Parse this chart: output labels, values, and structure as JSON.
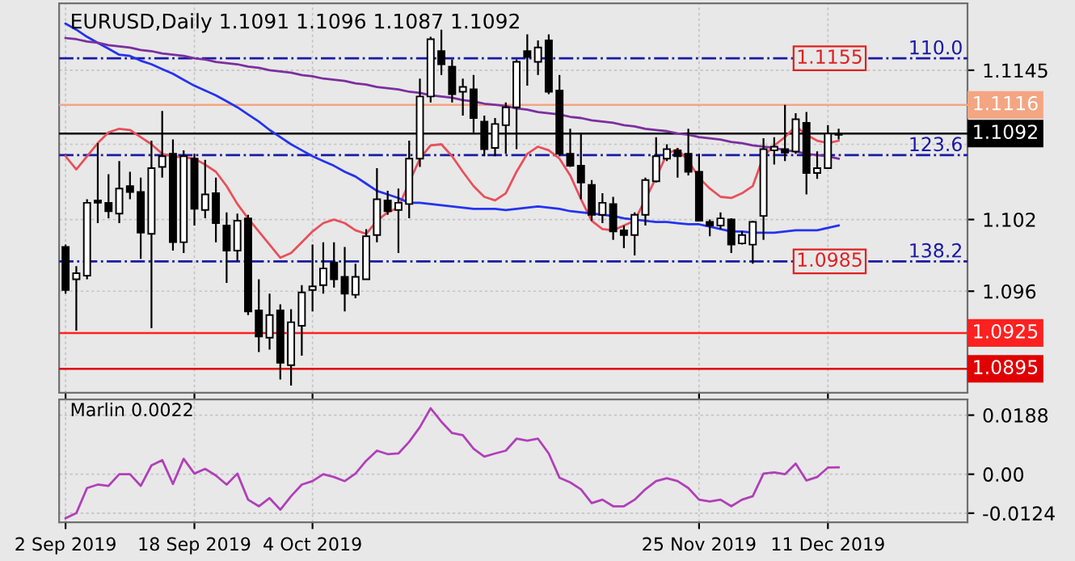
{
  "chart_data": [
    {
      "type": "candlestick",
      "title": "EURUSD,Daily 1.1091 1.1096 1.1087 1.1092",
      "categories": [
        null,
        null,
        null,
        null,
        null,
        null,
        null,
        null,
        null,
        null,
        null,
        null,
        null,
        null,
        null,
        null,
        null,
        null,
        null,
        null,
        null,
        null,
        null,
        null,
        null,
        null,
        null,
        null,
        null,
        null,
        null,
        null,
        null,
        null,
        null,
        null,
        null,
        null,
        null,
        null,
        null,
        null,
        null,
        null,
        null,
        null,
        null,
        null,
        null,
        null,
        null,
        null,
        null,
        null,
        null,
        null,
        null,
        null,
        null,
        null,
        null,
        null,
        null,
        null,
        null,
        null,
        null,
        null,
        null,
        null,
        null,
        null,
        null
      ],
      "ohlc": [
        [
          1.0997,
          1.0999,
          1.0958,
          1.0961
        ],
        [
          1.097,
          1.0981,
          1.0927,
          1.0975
        ],
        [
          1.0973,
          1.1037,
          1.097,
          1.1034
        ],
        [
          1.1036,
          1.1084,
          1.1017,
          1.1034
        ],
        [
          1.1034,
          1.1058,
          1.1021,
          1.1027
        ],
        [
          1.1025,
          1.1069,
          1.1017,
          1.1046
        ],
        [
          1.1048,
          1.106,
          1.1037,
          1.1043
        ],
        [
          1.1043,
          1.1055,
          1.0987,
          1.1009
        ],
        [
          1.1008,
          1.1086,
          1.0929,
          1.1063
        ],
        [
          1.1064,
          1.1111,
          1.1055,
          1.1073
        ],
        [
          1.1075,
          1.1087,
          1.0994,
          1.1001
        ],
        [
          1.1001,
          1.1078,
          1.0992,
          1.1073
        ],
        [
          1.1071,
          1.1075,
          1.1015,
          1.1029
        ],
        [
          1.1028,
          1.107,
          1.1021,
          1.1041
        ],
        [
          1.1042,
          1.1055,
          1.1001,
          1.1017
        ],
        [
          1.1015,
          1.1026,
          1.0967,
          1.0994
        ],
        [
          1.0994,
          1.1025,
          1.0985,
          1.1019
        ],
        [
          1.1021,
          1.1024,
          1.094,
          1.0943
        ],
        [
          1.0944,
          1.097,
          1.0909,
          1.0922
        ],
        [
          1.0921,
          1.0958,
          1.0911,
          1.094
        ],
        [
          1.0944,
          1.0949,
          1.0886,
          1.09
        ],
        [
          1.0898,
          1.0945,
          1.0881,
          1.0934
        ],
        [
          1.0931,
          1.0965,
          1.0906,
          1.0959
        ],
        [
          1.0961,
          1.0999,
          1.0943,
          1.0964
        ],
        [
          1.0965,
          1.1001,
          1.0958,
          1.0979
        ],
        [
          1.0984,
          1.1001,
          1.0963,
          1.097
        ],
        [
          1.0972,
          1.0997,
          1.0943,
          1.0958
        ],
        [
          1.0957,
          1.0983,
          1.0954,
          1.0972
        ],
        [
          1.097,
          1.1012,
          1.097,
          1.1006
        ],
        [
          1.1007,
          1.1063,
          1.1001,
          1.1037
        ],
        [
          1.1036,
          1.1044,
          1.1024,
          1.1027
        ],
        [
          1.1028,
          1.1046,
          1.0992,
          1.1034
        ],
        [
          1.1033,
          1.1086,
          1.1021,
          1.1071
        ],
        [
          1.1071,
          1.1138,
          1.1064,
          1.1123
        ],
        [
          1.1123,
          1.1173,
          1.1118,
          1.1171
        ],
        [
          1.1161,
          1.1179,
          1.1141,
          1.115
        ],
        [
          1.1148,
          1.1154,
          1.1118,
          1.1125
        ],
        [
          1.1127,
          1.1138,
          1.1107,
          1.1131
        ],
        [
          1.1129,
          1.1141,
          1.1093,
          1.1105
        ],
        [
          1.1102,
          1.1107,
          1.1073,
          1.1079
        ],
        [
          1.108,
          1.1105,
          1.1073,
          1.11
        ],
        [
          1.1099,
          1.1118,
          1.1075,
          1.1114
        ],
        [
          1.1114,
          1.1154,
          1.1079,
          1.1152
        ],
        [
          1.1161,
          1.1175,
          1.1132,
          1.1156
        ],
        [
          1.1152,
          1.117,
          1.1141,
          1.1164
        ],
        [
          1.117,
          1.1175,
          1.1125,
          1.1127
        ],
        [
          1.1128,
          1.1141,
          1.1073,
          1.1075
        ],
        [
          1.1075,
          1.1096,
          1.1064,
          1.1065
        ],
        [
          1.1065,
          1.1092,
          1.1037,
          1.1051
        ],
        [
          1.1049,
          1.1053,
          1.1019,
          1.1024
        ],
        [
          1.1024,
          1.1042,
          1.1017,
          1.1034
        ],
        [
          1.1033,
          1.1039,
          1.1003,
          1.101
        ],
        [
          1.1011,
          1.1015,
          1.0996,
          1.1007
        ],
        [
          1.1007,
          1.1026,
          1.099,
          1.1024
        ],
        [
          1.1024,
          1.1055,
          1.1015,
          1.1053
        ],
        [
          1.1052,
          1.1089,
          1.1051,
          1.1073
        ],
        [
          1.1071,
          1.1083,
          1.1069,
          1.1079
        ],
        [
          1.1078,
          1.108,
          1.1055,
          1.1073
        ],
        [
          1.1075,
          1.1096,
          1.1057,
          1.106
        ],
        [
          1.106,
          1.1075,
          1.1019,
          1.1019
        ],
        [
          1.1018,
          1.102,
          1.1006,
          1.1015
        ],
        [
          1.1015,
          1.1026,
          1.1012,
          1.1021
        ],
        [
          1.102,
          1.1021,
          1.0992,
          1.0999
        ],
        [
          1.1,
          1.101,
          1.0999,
          1.1007
        ],
        [
          1.0999,
          1.1019,
          1.0983,
          1.1018
        ],
        [
          1.1023,
          1.1088,
          1.1003,
          1.1079
        ],
        [
          1.1078,
          1.1089,
          1.1066,
          1.1081
        ],
        [
          1.1079,
          1.1116,
          1.1069,
          1.1076
        ],
        [
          1.1077,
          1.1109,
          1.1075,
          1.1104
        ],
        [
          1.1101,
          1.111,
          1.1041,
          1.1059
        ],
        [
          1.1059,
          1.1077,
          1.1054,
          1.1063
        ],
        [
          1.1063,
          1.1099,
          1.1063,
          1.1092
        ],
        [
          1.1091,
          1.1096,
          1.1087,
          1.1092
        ]
      ],
      "series": [
        {
          "type": "line",
          "color": "#e8505b",
          "values": [
            1.1073,
            1.1062,
            1.1073,
            1.1084,
            1.1093,
            1.1096,
            1.1095,
            1.1089,
            1.1083,
            1.1075,
            1.1073,
            1.1072,
            1.1071,
            1.1066,
            1.106,
            1.1048,
            1.1033,
            1.1021,
            1.101,
            1.0999,
            1.0988,
            1.0992,
            1.1001,
            1.101,
            1.1017,
            1.102,
            1.1017,
            1.1011,
            1.1008,
            1.1019,
            1.1026,
            1.103,
            1.1051,
            1.1071,
            1.1082,
            1.1083,
            1.1073,
            1.106,
            1.1048,
            1.1039,
            1.1036,
            1.1042,
            1.106,
            1.1075,
            1.1081,
            1.1078,
            1.1071,
            1.1057,
            1.1037,
            1.1019,
            1.1012,
            1.1011,
            1.1015,
            1.1019,
            1.1037,
            1.1055,
            1.1075,
            1.1079,
            1.1069,
            1.1055,
            1.1046,
            1.1039,
            1.1038,
            1.1042,
            1.1048,
            1.1073,
            1.1082,
            1.1089,
            1.1098,
            1.1091,
            1.1086,
            1.1084,
            1.1086
          ]
        },
        {
          "type": "line",
          "color": "#2433f0",
          "values": [
            1.1184,
            1.1179,
            1.1173,
            1.1168,
            1.1163,
            1.1158,
            1.1157,
            1.1153,
            1.115,
            1.1146,
            1.1142,
            1.1137,
            1.1132,
            1.1128,
            1.1124,
            1.1119,
            1.1114,
            1.1108,
            1.1102,
            1.1095,
            1.1089,
            1.1083,
            1.1078,
            1.1073,
            1.1069,
            1.1065,
            1.106,
            1.1056,
            1.105,
            1.1044,
            1.1041,
            1.1038,
            1.1034,
            1.1034,
            1.1033,
            1.1032,
            1.1031,
            1.103,
            1.1029,
            1.1029,
            1.1029,
            1.1028,
            1.1029,
            1.103,
            1.1031,
            1.103,
            1.1029,
            1.1027,
            1.1026,
            1.1025,
            1.1024,
            1.1023,
            1.1021,
            1.102,
            1.1019,
            1.1018,
            1.1018,
            1.1017,
            1.1016,
            1.1016,
            1.1014,
            1.1012,
            1.101,
            1.101,
            1.1009,
            1.1009,
            1.1009,
            1.101,
            1.1011,
            1.1011,
            1.1011,
            1.1013,
            1.1015
          ]
        },
        {
          "type": "line",
          "color": "#7b2f9e",
          "values": [
            1.1172,
            1.1171,
            1.1169,
            1.1168,
            1.1166,
            1.1165,
            1.1164,
            1.1162,
            1.1161,
            1.1159,
            1.1158,
            1.1157,
            1.1155,
            1.1154,
            1.1152,
            1.1151,
            1.115,
            1.1148,
            1.1147,
            1.1145,
            1.1144,
            1.1143,
            1.1141,
            1.114,
            1.1138,
            1.1137,
            1.1136,
            1.1134,
            1.1133,
            1.1131,
            1.113,
            1.1129,
            1.1127,
            1.1126,
            1.1124,
            1.1123,
            1.1122,
            1.112,
            1.1119,
            1.1117,
            1.1116,
            1.1115,
            1.1113,
            1.1112,
            1.111,
            1.1109,
            1.1108,
            1.1106,
            1.1105,
            1.1103,
            1.1102,
            1.1101,
            1.1099,
            1.1098,
            1.1096,
            1.1095,
            1.1094,
            1.1092,
            1.1091,
            1.1089,
            1.1088,
            1.1087,
            1.1085,
            1.1084,
            1.1082,
            1.1081,
            1.108,
            1.1078,
            1.1077,
            1.1075,
            1.1074,
            1.1073,
            1.1071
          ]
        }
      ],
      "ylim": [
        1.0875,
        1.1201
      ],
      "yticks": [
        1.1145,
        {
          "value": 1.1083,
          "label": null
        },
        1.102,
        1.096
      ],
      "ref_lines": [
        {
          "axis": "y",
          "value": 1.1155,
          "label": "1.1155",
          "color": "#1a1aa6",
          "line_style": "dashdot"
        },
        {
          "axis": "y",
          "value": 1.1074,
          "color": "#1a1aa6",
          "line_style": "dashdot"
        },
        {
          "axis": "y",
          "value": 1.0985,
          "label": "1.0985",
          "color": "#1a1aa6",
          "line_style": "dashdot"
        },
        {
          "axis": "y",
          "value": 1.1116,
          "label": "1.1116",
          "color": "#f4a582",
          "line_style": "solid"
        },
        {
          "axis": "y",
          "value": 1.1092,
          "label": "1.1092",
          "color": "#000000",
          "line_style": "solid"
        },
        {
          "axis": "y",
          "value": 1.0925,
          "label": "1.0925",
          "color": "#ff2020",
          "line_style": "solid"
        },
        {
          "axis": "y",
          "value": 1.0895,
          "label": "1.0895",
          "color": "#e00000",
          "line_style": "solid"
        }
      ],
      "annotations": [
        {
          "text": "110.0",
          "y": 1.1155
        },
        {
          "text": "123.6",
          "y": 1.1074
        },
        {
          "text": "138.2",
          "y": 1.0985
        }
      ],
      "grid": true,
      "tick_labels": "y"
    },
    {
      "type": "line",
      "title": "Marlin 0.0022",
      "categories": [
        "2 Sep 2019",
        null,
        null,
        null,
        null,
        null,
        null,
        null,
        null,
        null,
        null,
        null,
        "18 Sep 2019",
        null,
        null,
        null,
        null,
        null,
        null,
        null,
        null,
        null,
        null,
        "4 Oct 2019",
        null,
        null,
        null,
        null,
        null,
        null,
        null,
        null,
        null,
        null,
        null,
        null,
        null,
        null,
        null,
        null,
        null,
        null,
        null,
        null,
        null,
        null,
        null,
        null,
        null,
        null,
        null,
        null,
        null,
        null,
        null,
        null,
        null,
        null,
        null,
        "25 Nov 2019",
        null,
        null,
        null,
        null,
        null,
        null,
        null,
        null,
        null,
        null,
        null,
        "11 Dec 2019",
        null
      ],
      "series": [
        {
          "color": "#b040b8",
          "values": [
            -0.014,
            -0.0124,
            -0.0044,
            -0.0033,
            -0.0037,
            0.0,
            0.0,
            -0.0037,
            0.0028,
            0.0045,
            -0.0031,
            0.0049,
            0.0002,
            0.0017,
            -0.0004,
            -0.0033,
            0.0002,
            -0.0081,
            -0.0102,
            -0.0076,
            -0.0113,
            -0.007,
            -0.0033,
            -0.0022,
            0.0,
            -0.0009,
            -0.0022,
            0.0002,
            0.0043,
            0.0075,
            0.0064,
            0.0066,
            0.0103,
            0.015,
            0.021,
            0.0167,
            0.0131,
            0.0124,
            0.0081,
            0.0056,
            0.0066,
            0.0075,
            0.0113,
            0.0107,
            0.0113,
            0.0066,
            -0.0011,
            -0.0026,
            -0.0048,
            -0.0092,
            -0.0081,
            -0.0102,
            -0.0102,
            -0.0081,
            -0.0048,
            -0.0022,
            -0.0013,
            -0.0022,
            -0.0044,
            -0.0081,
            -0.0087,
            -0.0081,
            -0.0102,
            -0.0081,
            -0.007,
            0.0002,
            0.0006,
            0.0,
            0.0034,
            -0.002,
            -0.0009,
            0.0021,
            0.0022
          ]
        }
      ],
      "ylim": [
        -0.0153,
        0.0238
      ],
      "yticks": [
        0.0188,
        {
          "value": 0,
          "label": "0.00"
        },
        -0.0124
      ],
      "grid": true
    }
  ]
}
